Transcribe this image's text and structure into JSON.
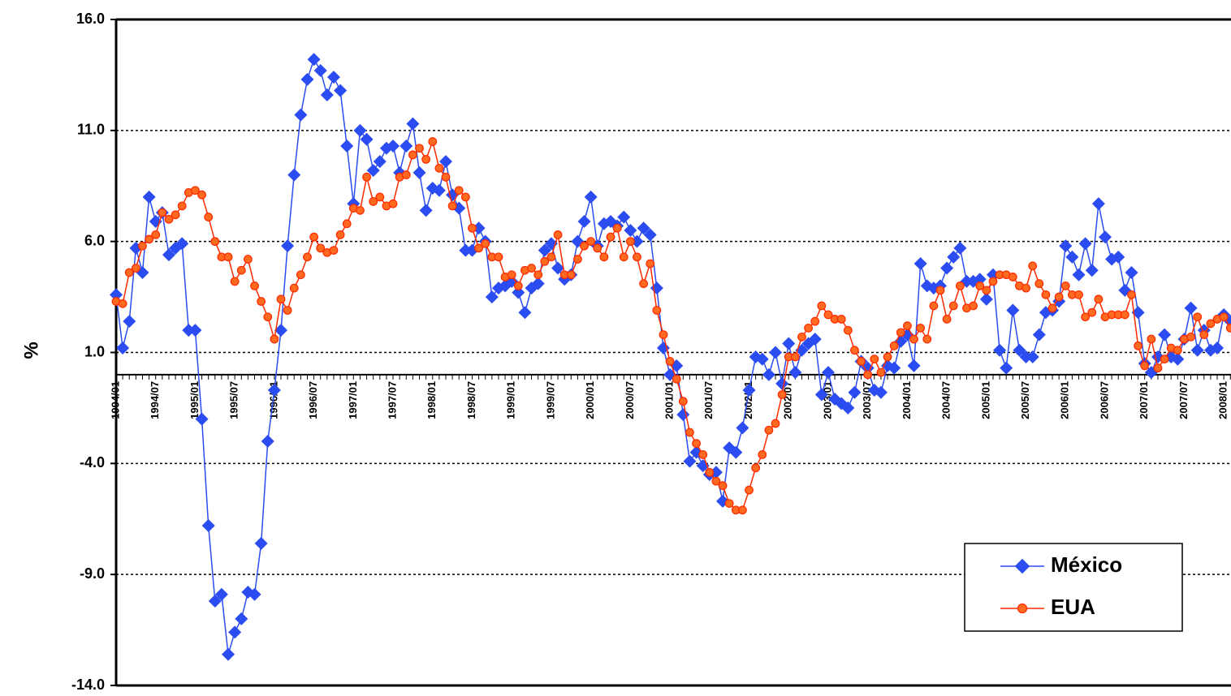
{
  "chart_data": {
    "type": "line",
    "y_label": "%",
    "categories": [
      "1994/01",
      null,
      null,
      null,
      null,
      null,
      "1994/07",
      null,
      null,
      null,
      null,
      null,
      "1995/01",
      null,
      null,
      null,
      null,
      null,
      "1995/07",
      null,
      null,
      null,
      null,
      null,
      "1996/01",
      null,
      null,
      null,
      null,
      null,
      "1996/07",
      null,
      null,
      null,
      null,
      null,
      "1997/01",
      null,
      null,
      null,
      null,
      null,
      "1997/07",
      null,
      null,
      null,
      null,
      null,
      "1998/01",
      null,
      null,
      null,
      null,
      null,
      "1998/07",
      null,
      null,
      null,
      null,
      null,
      "1999/01",
      null,
      null,
      null,
      null,
      null,
      "1999/07",
      null,
      null,
      null,
      null,
      null,
      "2000/01",
      null,
      null,
      null,
      null,
      null,
      "2000/07",
      null,
      null,
      null,
      null,
      null,
      "2001/01",
      null,
      null,
      null,
      null,
      null,
      "2001/07",
      null,
      null,
      null,
      null,
      null,
      "2002/01",
      null,
      null,
      null,
      null,
      null,
      "2002/07",
      null,
      null,
      null,
      null,
      null,
      "2003/01",
      null,
      null,
      null,
      null,
      null,
      "2003/07",
      null,
      null,
      null,
      null,
      null,
      "2004/01",
      null,
      null,
      null,
      null,
      null,
      "2004/07",
      null,
      null,
      null,
      null,
      null,
      "2005/01",
      null,
      null,
      null,
      null,
      null,
      "2005/07",
      null,
      null,
      null,
      null,
      null,
      "2006/01",
      null,
      null,
      null,
      null,
      null,
      "2006/07",
      null,
      null,
      null,
      null,
      null,
      "2007/01",
      null,
      null,
      null,
      null,
      null,
      "2007/07",
      null,
      null,
      null,
      null,
      null,
      "2008/01",
      null
    ],
    "series": [
      {
        "name": "México",
        "color": "#2b4cf0",
        "marker": "diamond",
        "values": [
          3.6,
          1.2,
          2.4,
          5.7,
          4.6,
          8.0,
          6.9,
          7.3,
          5.4,
          5.7,
          5.9,
          2.0,
          2.0,
          -2.0,
          -6.8,
          -10.2,
          -9.9,
          -12.6,
          -11.6,
          -11.0,
          -9.8,
          -9.9,
          -7.6,
          -3.0,
          -0.7,
          2.0,
          5.8,
          9.0,
          11.7,
          13.3,
          14.2,
          13.7,
          12.6,
          13.4,
          12.8,
          10.3,
          7.7,
          11.0,
          10.6,
          9.2,
          9.6,
          10.2,
          10.3,
          9.1,
          10.3,
          11.3,
          9.1,
          7.4,
          8.4,
          8.3,
          9.6,
          8.1,
          7.5,
          5.6,
          5.6,
          6.6,
          6.0,
          3.5,
          3.9,
          4.0,
          4.2,
          3.7,
          2.8,
          3.9,
          4.1,
          5.6,
          5.9,
          4.8,
          4.3,
          4.5,
          6.0,
          6.9,
          8.0,
          5.8,
          6.8,
          6.9,
          6.7,
          7.1,
          6.5,
          6.0,
          6.6,
          6.3,
          3.9,
          1.2,
          0.0,
          0.4,
          -1.8,
          -3.9,
          -3.5,
          -4.1,
          -4.5,
          -4.4,
          -5.7,
          -3.3,
          -3.5,
          -2.4,
          -0.7,
          0.8,
          0.7,
          0.0,
          1.0,
          -0.4,
          1.4,
          0.1,
          1.1,
          1.4,
          1.6,
          -0.9,
          0.1,
          -1.1,
          -1.3,
          -1.5,
          -0.8,
          0.6,
          0.3,
          -0.7,
          -0.8,
          0.4,
          0.3,
          1.5,
          1.8,
          0.4,
          5.0,
          4.0,
          3.9,
          4.0,
          4.8,
          5.3,
          5.7,
          4.2,
          4.2,
          4.3,
          3.4,
          4.5,
          1.1,
          0.3,
          2.9,
          1.1,
          0.8,
          0.8,
          1.8,
          2.8,
          2.9,
          3.3,
          5.8,
          5.3,
          4.5,
          5.9,
          4.7,
          7.7,
          6.2,
          5.2,
          5.3,
          3.8,
          4.6,
          2.8,
          0.5,
          0.1,
          0.8,
          1.8,
          0.8,
          0.7,
          1.6,
          3.0,
          1.1,
          2.0,
          1.1,
          1.2,
          2.7,
          2.4
        ]
      },
      {
        "name": "EUA",
        "color": "#ff2a00",
        "marker": "circle",
        "values": [
          3.3,
          3.2,
          4.6,
          4.8,
          5.8,
          6.1,
          6.3,
          7.3,
          7.0,
          7.2,
          7.6,
          8.2,
          8.3,
          8.1,
          7.1,
          6.0,
          5.3,
          5.3,
          4.2,
          4.7,
          5.2,
          4.0,
          3.3,
          2.6,
          1.6,
          3.4,
          2.9,
          3.9,
          4.5,
          5.3,
          6.2,
          5.7,
          5.5,
          5.6,
          6.3,
          6.8,
          7.5,
          7.4,
          8.9,
          7.8,
          8.0,
          7.6,
          7.7,
          8.9,
          9.0,
          9.9,
          10.2,
          9.7,
          10.5,
          9.3,
          8.9,
          7.6,
          8.3,
          8.0,
          6.6,
          5.7,
          5.9,
          5.3,
          5.3,
          4.4,
          4.5,
          4.0,
          4.7,
          4.8,
          4.5,
          5.1,
          5.3,
          6.3,
          4.5,
          4.5,
          5.2,
          5.8,
          6.0,
          5.7,
          5.3,
          6.2,
          6.6,
          5.3,
          6.0,
          5.3,
          4.1,
          5.0,
          2.9,
          1.8,
          0.6,
          -0.2,
          -1.2,
          -2.6,
          -3.1,
          -3.6,
          -4.4,
          -4.8,
          -5.0,
          -5.8,
          -6.1,
          -6.1,
          -5.2,
          -4.2,
          -3.6,
          -2.5,
          -2.2,
          -0.9,
          0.8,
          0.8,
          1.7,
          2.1,
          2.4,
          3.1,
          2.7,
          2.5,
          2.5,
          2.0,
          1.1,
          0.6,
          0.0,
          0.7,
          0.1,
          0.8,
          1.3,
          1.9,
          2.2,
          1.6,
          2.1,
          1.6,
          3.1,
          3.8,
          2.5,
          3.1,
          4.0,
          3.0,
          3.1,
          4.0,
          3.8,
          4.2,
          4.5,
          4.5,
          4.4,
          4.0,
          3.9,
          4.9,
          4.1,
          3.6,
          3.0,
          3.5,
          4.0,
          3.6,
          3.6,
          2.6,
          2.8,
          3.4,
          2.6,
          2.7,
          2.7,
          2.7,
          3.6,
          1.3,
          0.4,
          1.6,
          0.3,
          0.7,
          1.2,
          1.1,
          1.6,
          1.7,
          2.6,
          1.8,
          2.3,
          2.5,
          2.6,
          2.1
        ]
      }
    ],
    "ylim": [
      -14,
      16
    ],
    "yticks": [
      {
        "value": -14,
        "label": "-14.0"
      },
      {
        "value": -9,
        "label": "-9.0"
      },
      {
        "value": -4,
        "label": "-4.0"
      },
      {
        "value": 1,
        "label": "1.0"
      },
      {
        "value": 6,
        "label": "6.0"
      },
      {
        "value": 11,
        "label": "11.0"
      },
      {
        "value": 16,
        "label": "16.0"
      }
    ],
    "grid": true,
    "legend": "lower right"
  }
}
